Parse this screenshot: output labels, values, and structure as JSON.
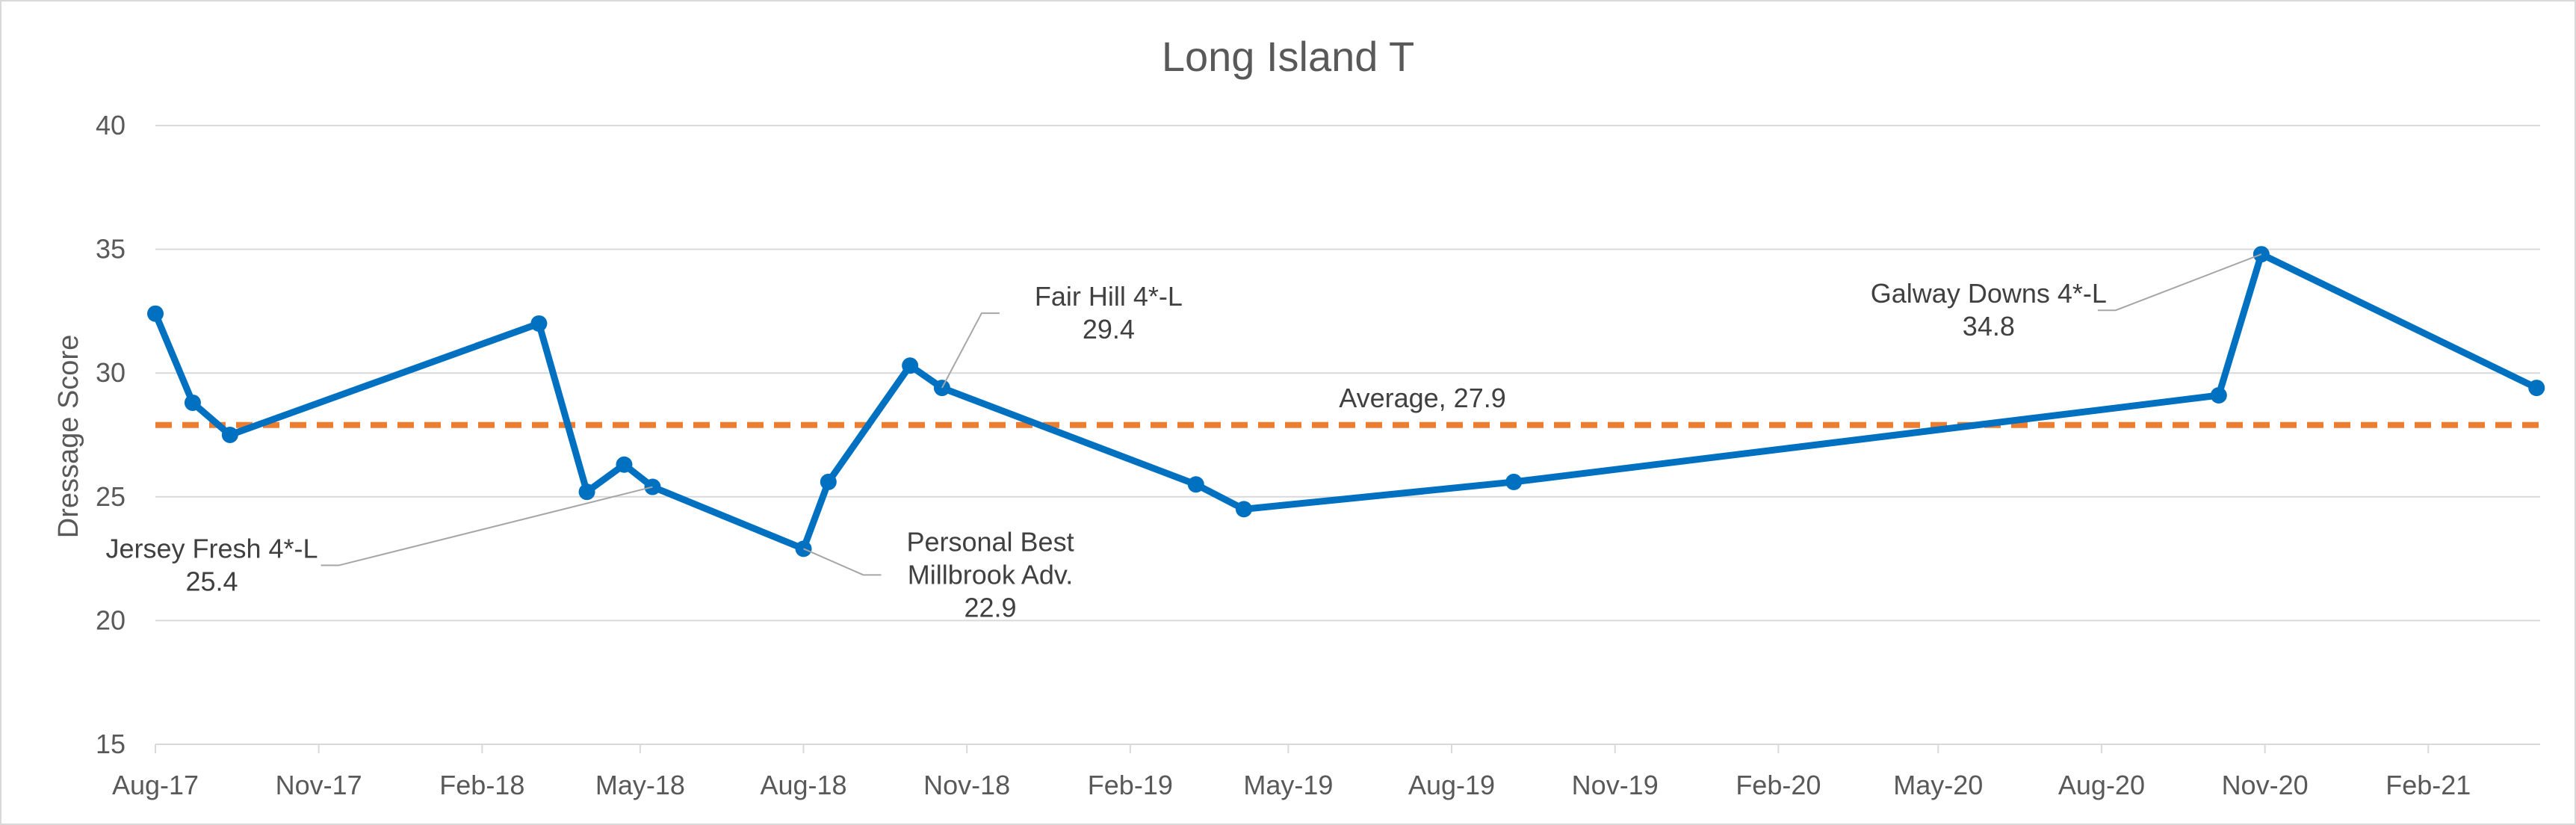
{
  "chart_data": {
    "type": "line",
    "title": "Long Island T",
    "xlabel": "",
    "ylabel": "Dressage Score",
    "ylim": [
      15,
      40
    ],
    "yticks": [
      15,
      20,
      25,
      30,
      35,
      40
    ],
    "xlim": [
      "2017-08-01",
      "2021-04-05"
    ],
    "xticks": [
      {
        "date": "2017-08-01",
        "label": "Aug-17"
      },
      {
        "date": "2017-11-01",
        "label": "Nov-17"
      },
      {
        "date": "2018-02-01",
        "label": "Feb-18"
      },
      {
        "date": "2018-05-01",
        "label": "May-18"
      },
      {
        "date": "2018-08-01",
        "label": "Aug-18"
      },
      {
        "date": "2018-11-01",
        "label": "Nov-18"
      },
      {
        "date": "2019-02-01",
        "label": "Feb-19"
      },
      {
        "date": "2019-05-01",
        "label": "May-19"
      },
      {
        "date": "2019-08-01",
        "label": "Aug-19"
      },
      {
        "date": "2019-11-01",
        "label": "Nov-19"
      },
      {
        "date": "2020-02-01",
        "label": "Feb-20"
      },
      {
        "date": "2020-05-01",
        "label": "May-20"
      },
      {
        "date": "2020-08-01",
        "label": "Aug-20"
      },
      {
        "date": "2020-11-01",
        "label": "Nov-20"
      },
      {
        "date": "2021-02-01",
        "label": "Feb-21"
      }
    ],
    "grid": true,
    "colors": {
      "series": "#0070c0",
      "average": "#ed7d31",
      "grid": "#d9d9d9",
      "leader": "#a6a6a6"
    },
    "series": [
      {
        "points": [
          {
            "x": "2017-08-01",
            "y": 32.4
          },
          {
            "x": "2017-08-22",
            "y": 28.8
          },
          {
            "x": "2017-09-12",
            "y": 27.5
          },
          {
            "x": "2018-03-05",
            "y": 32.0
          },
          {
            "x": "2018-04-01",
            "y": 25.2
          },
          {
            "x": "2018-04-22",
            "y": 26.3
          },
          {
            "x": "2018-05-08",
            "y": 25.4
          },
          {
            "x": "2018-08-01",
            "y": 22.9
          },
          {
            "x": "2018-08-15",
            "y": 25.6
          },
          {
            "x": "2018-09-30",
            "y": 30.3
          },
          {
            "x": "2018-10-18",
            "y": 29.4
          },
          {
            "x": "2019-03-10",
            "y": 25.5
          },
          {
            "x": "2019-04-06",
            "y": 24.5
          },
          {
            "x": "2019-09-05",
            "y": 25.6
          },
          {
            "x": "2020-10-06",
            "y": 29.1
          },
          {
            "x": "2020-10-30",
            "y": 34.8
          },
          {
            "x": "2021-04-03",
            "y": 29.4
          }
        ]
      }
    ],
    "average": {
      "value": 27.9,
      "label": "Average, 27.9"
    },
    "annotations": [
      {
        "x": "2018-05-08",
        "y": 25.4,
        "lines": [
          "Jersey Fresh 4*-L",
          "25.4"
        ],
        "dx": -430,
        "dy": 105
      },
      {
        "x": "2018-08-01",
        "y": 22.9,
        "lines": [
          "Personal Best",
          "Millbrook Adv.",
          "22.9"
        ],
        "dx": 90,
        "dy": 35
      },
      {
        "x": "2018-10-18",
        "y": 29.4,
        "lines": [
          "Fair Hill 4*-L",
          "29.4"
        ],
        "dx": 63,
        "dy": -100
      },
      {
        "x": "2020-10-30",
        "y": 34.8,
        "lines": [
          "Galway Downs 4*-L",
          "34.8"
        ],
        "dx": -205,
        "dy": 75
      }
    ]
  }
}
